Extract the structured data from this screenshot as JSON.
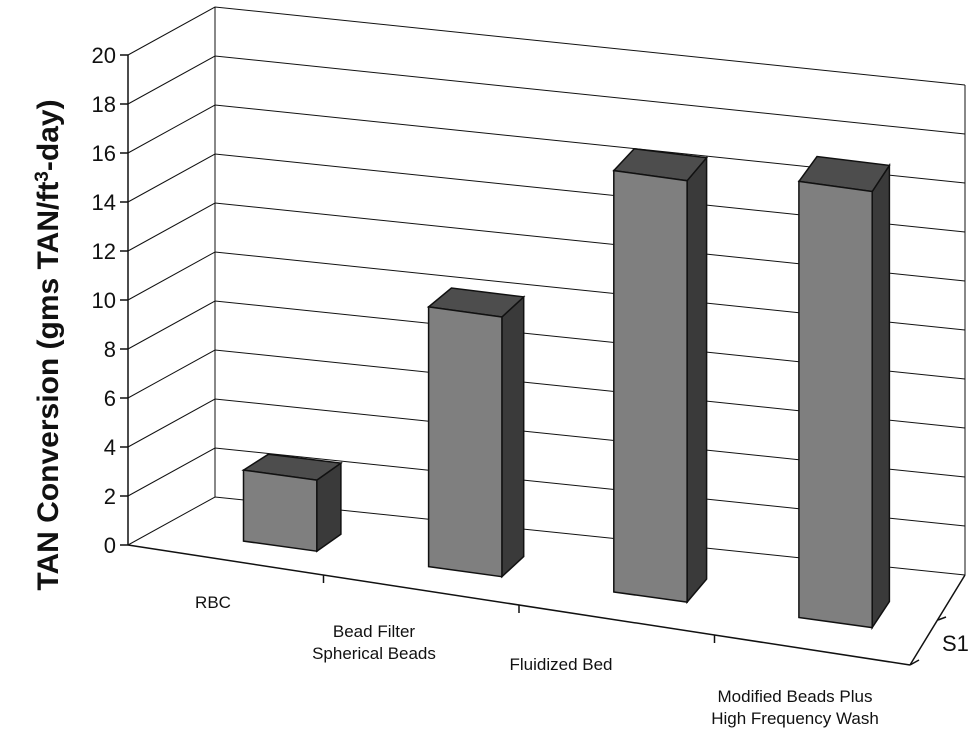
{
  "chart_data": {
    "type": "bar",
    "style": "3d",
    "categories": [
      [
        "RBC"
      ],
      [
        "Bead Filter",
        "Spherical Beads"
      ],
      [
        "Fluidized Bed"
      ],
      [
        "Modified Beads Plus",
        "High Frequency Wash"
      ]
    ],
    "series": [
      {
        "name": "S1",
        "values": [
          2.9,
          10.6,
          17.2,
          17.8
        ]
      }
    ],
    "ylabel": {
      "prefix": "TAN Conversion (gms TAN/ft",
      "sup": "3",
      "suffix": "-day)"
    },
    "ylim": [
      0,
      20
    ],
    "yticks": [
      "0",
      "2",
      "4",
      "6",
      "8",
      "10",
      "12",
      "14",
      "16",
      "18",
      "20"
    ],
    "grid": true,
    "bar_front_color": "#7f7f7f",
    "bar_top_color": "#4d4d4d",
    "bar_side_color": "#3a3a3a",
    "grid_color": "#111111"
  }
}
